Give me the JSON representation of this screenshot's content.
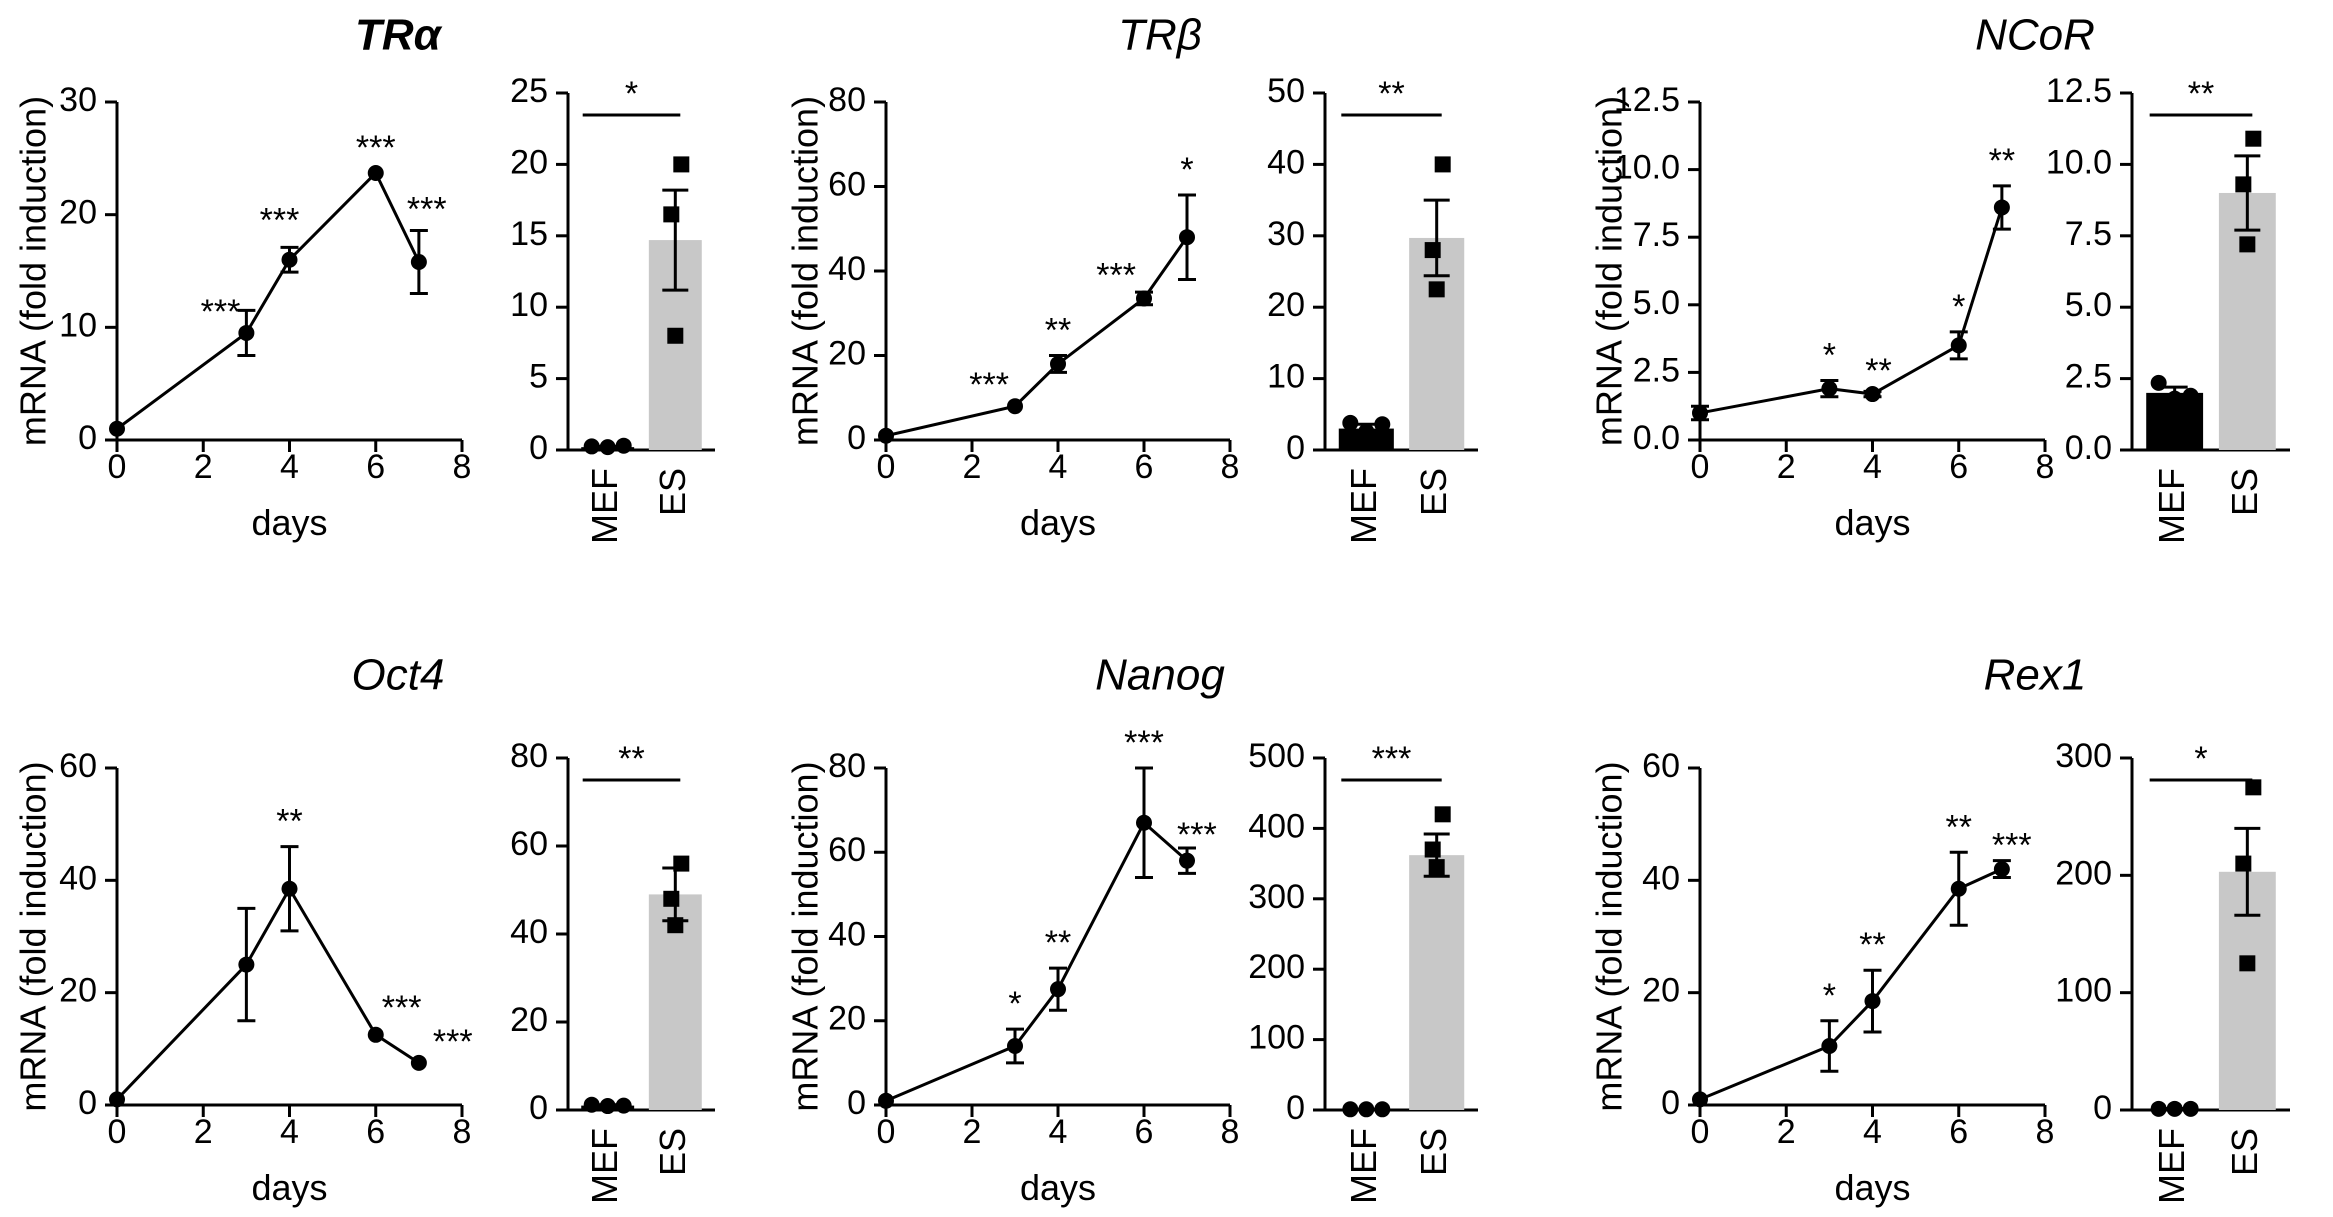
{
  "figure": {
    "rows": [
      [
        {
          "gene": "TRα",
          "bold": true,
          "line": {
            "ylabel": "mRNA (fold induction)",
            "xlabel": "days",
            "ylim": [
              0,
              30
            ],
            "yticks": [
              0,
              10,
              20,
              30
            ],
            "ytick_labels": [
              "0",
              "10",
              "20",
              "30"
            ],
            "xlim": [
              0,
              8
            ],
            "xticks": [
              0,
              2,
              4,
              6,
              8
            ],
            "xtick_labels": [
              "0",
              "2",
              "4",
              "6",
              "8"
            ],
            "x": [
              0,
              3,
              4,
              6,
              7
            ],
            "y": [
              1,
              9.5,
              16,
              23.7,
              15.8
            ],
            "err": [
              0,
              2,
              1.1,
              0,
              2.8
            ],
            "sig": [
              "",
              "***",
              "***",
              "***",
              "***"
            ]
          },
          "bar": {
            "ylim": [
              0,
              25
            ],
            "yticks": [
              0,
              5,
              10,
              15,
              20,
              25
            ],
            "ytick_labels": [
              "0",
              "5",
              "10",
              "15",
              "20",
              "25"
            ],
            "categories": [
              "MEF",
              "ES"
            ],
            "values": [
              0.2,
              14.7
            ],
            "errors": [
              0.05,
              3.5
            ],
            "points": [
              [
                0.25,
                0.2,
                0.3
              ],
              [
                20,
                16.5,
                8
              ]
            ],
            "colors": [
              "#000000",
              "#c8c8c8"
            ],
            "sig": "*"
          }
        },
        {
          "gene": "TRβ",
          "bold": false,
          "line": {
            "ylabel": "mRNA (fold induction)",
            "xlabel": "days",
            "ylim": [
              0,
              80
            ],
            "yticks": [
              0,
              20,
              40,
              60,
              80
            ],
            "ytick_labels": [
              "0",
              "20",
              "40",
              "60",
              "80"
            ],
            "xlim": [
              0,
              8
            ],
            "xticks": [
              0,
              2,
              4,
              6,
              8
            ],
            "xtick_labels": [
              "0",
              "2",
              "4",
              "6",
              "8"
            ],
            "x": [
              0,
              3,
              4,
              6,
              7
            ],
            "y": [
              1,
              8,
              18,
              33.5,
              48
            ],
            "err": [
              0,
              0,
              2,
              1.5,
              10
            ],
            "sig": [
              "",
              "***",
              "**",
              "***",
              "*"
            ]
          },
          "bar": {
            "ylim": [
              0,
              50
            ],
            "yticks": [
              0,
              10,
              20,
              30,
              40,
              50
            ],
            "ytick_labels": [
              "0",
              "10",
              "20",
              "30",
              "40",
              "50"
            ],
            "categories": [
              "MEF",
              "ES"
            ],
            "values": [
              3,
              29.7
            ],
            "errors": [
              0.6,
              5.3
            ],
            "points": [
              [
                3.8,
                2.6,
                3.6
              ],
              [
                40,
                28,
                22.5
              ]
            ],
            "colors": [
              "#000000",
              "#c8c8c8"
            ],
            "sig": "**"
          }
        },
        {
          "gene": "NCoR",
          "bold": false,
          "line": {
            "ylabel": "mRNA (fold induction)",
            "xlabel": "days",
            "ylim": [
              0,
              12.5
            ],
            "yticks": [
              0,
              2.5,
              5,
              7.5,
              10,
              12.5
            ],
            "ytick_labels": [
              "0.0",
              "2.5",
              "5.0",
              "7.5",
              "10.0",
              "12.5"
            ],
            "xlim": [
              0,
              8
            ],
            "xticks": [
              0,
              2,
              4,
              6,
              8
            ],
            "xtick_labels": [
              "0",
              "2",
              "4",
              "6",
              "8"
            ],
            "x": [
              0,
              3,
              4,
              6,
              7
            ],
            "y": [
              1,
              1.9,
              1.7,
              3.5,
              8.6
            ],
            "err": [
              0.25,
              0.3,
              0.1,
              0.5,
              0.8
            ],
            "sig": [
              "",
              "*",
              "**",
              "*",
              "**"
            ]
          },
          "bar": {
            "ylim": [
              0,
              12.5
            ],
            "yticks": [
              0,
              2.5,
              5,
              7.5,
              10,
              12.5
            ],
            "ytick_labels": [
              "0.0",
              "2.5",
              "5.0",
              "7.5",
              "10.0",
              "12.5"
            ],
            "categories": [
              "MEF",
              "ES"
            ],
            "values": [
              2,
              9
            ],
            "errors": [
              0.2,
              1.3
            ],
            "points": [
              [
                2.35,
                1.8,
                1.9
              ],
              [
                10.9,
                9.3,
                7.2
              ]
            ],
            "colors": [
              "#000000",
              "#c8c8c8"
            ],
            "sig": "**"
          }
        }
      ],
      [
        {
          "gene": "Oct4",
          "bold": false,
          "line": {
            "ylabel": "mRNA (fold induction)",
            "xlabel": "days",
            "ylim": [
              0,
              60
            ],
            "yticks": [
              0,
              20,
              40,
              60
            ],
            "ytick_labels": [
              "0",
              "20",
              "40",
              "60"
            ],
            "xlim": [
              0,
              8
            ],
            "xticks": [
              0,
              2,
              4,
              6,
              8
            ],
            "xtick_labels": [
              "0",
              "2",
              "4",
              "6",
              "8"
            ],
            "x": [
              0,
              3,
              4,
              6,
              7
            ],
            "y": [
              1,
              25,
              38.5,
              12.5,
              7.5
            ],
            "err": [
              0,
              10,
              7.5,
              0,
              0
            ],
            "sig": [
              "",
              "",
              "**",
              "***",
              "***"
            ]
          },
          "bar": {
            "ylim": [
              0,
              80
            ],
            "yticks": [
              0,
              20,
              40,
              60,
              80
            ],
            "ytick_labels": [
              "0",
              "20",
              "40",
              "60",
              "80"
            ],
            "categories": [
              "MEF",
              "ES"
            ],
            "values": [
              1,
              49
            ],
            "errors": [
              0.2,
              6
            ],
            "points": [
              [
                1.2,
                0.9,
                1
              ],
              [
                56,
                48,
                42
              ]
            ],
            "colors": [
              "#000000",
              "#c8c8c8"
            ],
            "sig": "**"
          }
        },
        {
          "gene": "Nanog",
          "bold": false,
          "line": {
            "ylabel": "mRNA (fold induction)",
            "xlabel": "days",
            "ylim": [
              0,
              80
            ],
            "yticks": [
              0,
              20,
              40,
              60,
              80
            ],
            "ytick_labels": [
              "0",
              "20",
              "40",
              "60",
              "80"
            ],
            "xlim": [
              0,
              8
            ],
            "xticks": [
              0,
              2,
              4,
              6,
              8
            ],
            "xtick_labels": [
              "0",
              "2",
              "4",
              "6",
              "8"
            ],
            "x": [
              0,
              3,
              4,
              6,
              7
            ],
            "y": [
              1,
              14,
              27.5,
              67,
              58
            ],
            "err": [
              0,
              4,
              5,
              13,
              3
            ],
            "sig": [
              "",
              "*",
              "**",
              "***",
              "***"
            ]
          },
          "bar": {
            "ylim": [
              0,
              500
            ],
            "yticks": [
              0,
              100,
              200,
              300,
              400,
              500
            ],
            "ytick_labels": [
              "0",
              "100",
              "200",
              "300",
              "400",
              "500"
            ],
            "categories": [
              "MEF",
              "ES"
            ],
            "values": [
              1,
              362
            ],
            "errors": [
              0.3,
              30
            ],
            "points": [
              [
                1,
                1,
                1
              ],
              [
                420,
                370,
                345
              ]
            ],
            "colors": [
              "#000000",
              "#c8c8c8"
            ],
            "sig": "***"
          }
        },
        {
          "gene": "Rex1",
          "bold": false,
          "line": {
            "ylabel": "mRNA (fold induction)",
            "xlabel": "days",
            "ylim": [
              0,
              60
            ],
            "yticks": [
              0,
              20,
              40,
              60
            ],
            "ytick_labels": [
              "0",
              "20",
              "40",
              "60"
            ],
            "xlim": [
              0,
              8
            ],
            "xticks": [
              0,
              2,
              4,
              6,
              8
            ],
            "xtick_labels": [
              "0",
              "2",
              "4",
              "6",
              "8"
            ],
            "x": [
              0,
              3,
              4,
              6,
              7
            ],
            "y": [
              1,
              10.5,
              18.5,
              38.5,
              42
            ],
            "err": [
              0,
              4.5,
              5.5,
              6.5,
              1.5
            ],
            "sig": [
              "",
              "*",
              "**",
              "**",
              "***"
            ]
          },
          "bar": {
            "ylim": [
              0,
              300
            ],
            "yticks": [
              0,
              100,
              200,
              300
            ],
            "ytick_labels": [
              "0",
              "100",
              "200",
              "300"
            ],
            "categories": [
              "MEF",
              "ES"
            ],
            "values": [
              1,
              203
            ],
            "errors": [
              0.3,
              37
            ],
            "points": [
              [
                1,
                1,
                1
              ],
              [
                275,
                210,
                125
              ]
            ],
            "colors": [
              "#000000",
              "#c8c8c8"
            ],
            "sig": "*"
          }
        }
      ]
    ]
  },
  "chart_data": [
    {
      "type": "line",
      "title": "TRα",
      "xlabel": "days",
      "ylabel": "mRNA (fold induction)",
      "x": [
        0,
        3,
        4,
        6,
        7
      ],
      "y": [
        1,
        9.5,
        16,
        23.7,
        15.8
      ],
      "ylim": [
        0,
        30
      ],
      "xlim": [
        0,
        8
      ]
    },
    {
      "type": "bar",
      "title": "TRα",
      "categories": [
        "MEF",
        "ES"
      ],
      "values": [
        0.2,
        14.7
      ],
      "ylim": [
        0,
        25
      ]
    },
    {
      "type": "line",
      "title": "TRβ",
      "xlabel": "days",
      "ylabel": "mRNA (fold induction)",
      "x": [
        0,
        3,
        4,
        6,
        7
      ],
      "y": [
        1,
        8,
        18,
        33.5,
        48
      ],
      "ylim": [
        0,
        80
      ],
      "xlim": [
        0,
        8
      ]
    },
    {
      "type": "bar",
      "title": "TRβ",
      "categories": [
        "MEF",
        "ES"
      ],
      "values": [
        3,
        29.7
      ],
      "ylim": [
        0,
        50
      ]
    },
    {
      "type": "line",
      "title": "NCoR",
      "xlabel": "days",
      "ylabel": "mRNA (fold induction)",
      "x": [
        0,
        3,
        4,
        6,
        7
      ],
      "y": [
        1,
        1.9,
        1.7,
        3.5,
        8.6
      ],
      "ylim": [
        0,
        12.5
      ],
      "xlim": [
        0,
        8
      ]
    },
    {
      "type": "bar",
      "title": "NCoR",
      "categories": [
        "MEF",
        "ES"
      ],
      "values": [
        2,
        9
      ],
      "ylim": [
        0,
        12.5
      ]
    },
    {
      "type": "line",
      "title": "Oct4",
      "xlabel": "days",
      "ylabel": "mRNA (fold induction)",
      "x": [
        0,
        3,
        4,
        6,
        7
      ],
      "y": [
        1,
        25,
        38.5,
        12.5,
        7.5
      ],
      "ylim": [
        0,
        60
      ],
      "xlim": [
        0,
        8
      ]
    },
    {
      "type": "bar",
      "title": "Oct4",
      "categories": [
        "MEF",
        "ES"
      ],
      "values": [
        1,
        49
      ],
      "ylim": [
        0,
        80
      ]
    },
    {
      "type": "line",
      "title": "Nanog",
      "xlabel": "days",
      "ylabel": "mRNA (fold induction)",
      "x": [
        0,
        3,
        4,
        6,
        7
      ],
      "y": [
        1,
        14,
        27.5,
        67,
        58
      ],
      "ylim": [
        0,
        80
      ],
      "xlim": [
        0,
        8
      ]
    },
    {
      "type": "bar",
      "title": "Nanog",
      "categories": [
        "MEF",
        "ES"
      ],
      "values": [
        1,
        362
      ],
      "ylim": [
        0,
        500
      ]
    },
    {
      "type": "line",
      "title": "Rex1",
      "xlabel": "days",
      "ylabel": "mRNA (fold induction)",
      "x": [
        0,
        3,
        4,
        6,
        7
      ],
      "y": [
        1,
        10.5,
        18.5,
        38.5,
        42
      ],
      "ylim": [
        0,
        60
      ],
      "xlim": [
        0,
        8
      ]
    },
    {
      "type": "bar",
      "title": "Rex1",
      "categories": [
        "MEF",
        "ES"
      ],
      "values": [
        1,
        203
      ],
      "ylim": [
        0,
        300
      ]
    }
  ]
}
